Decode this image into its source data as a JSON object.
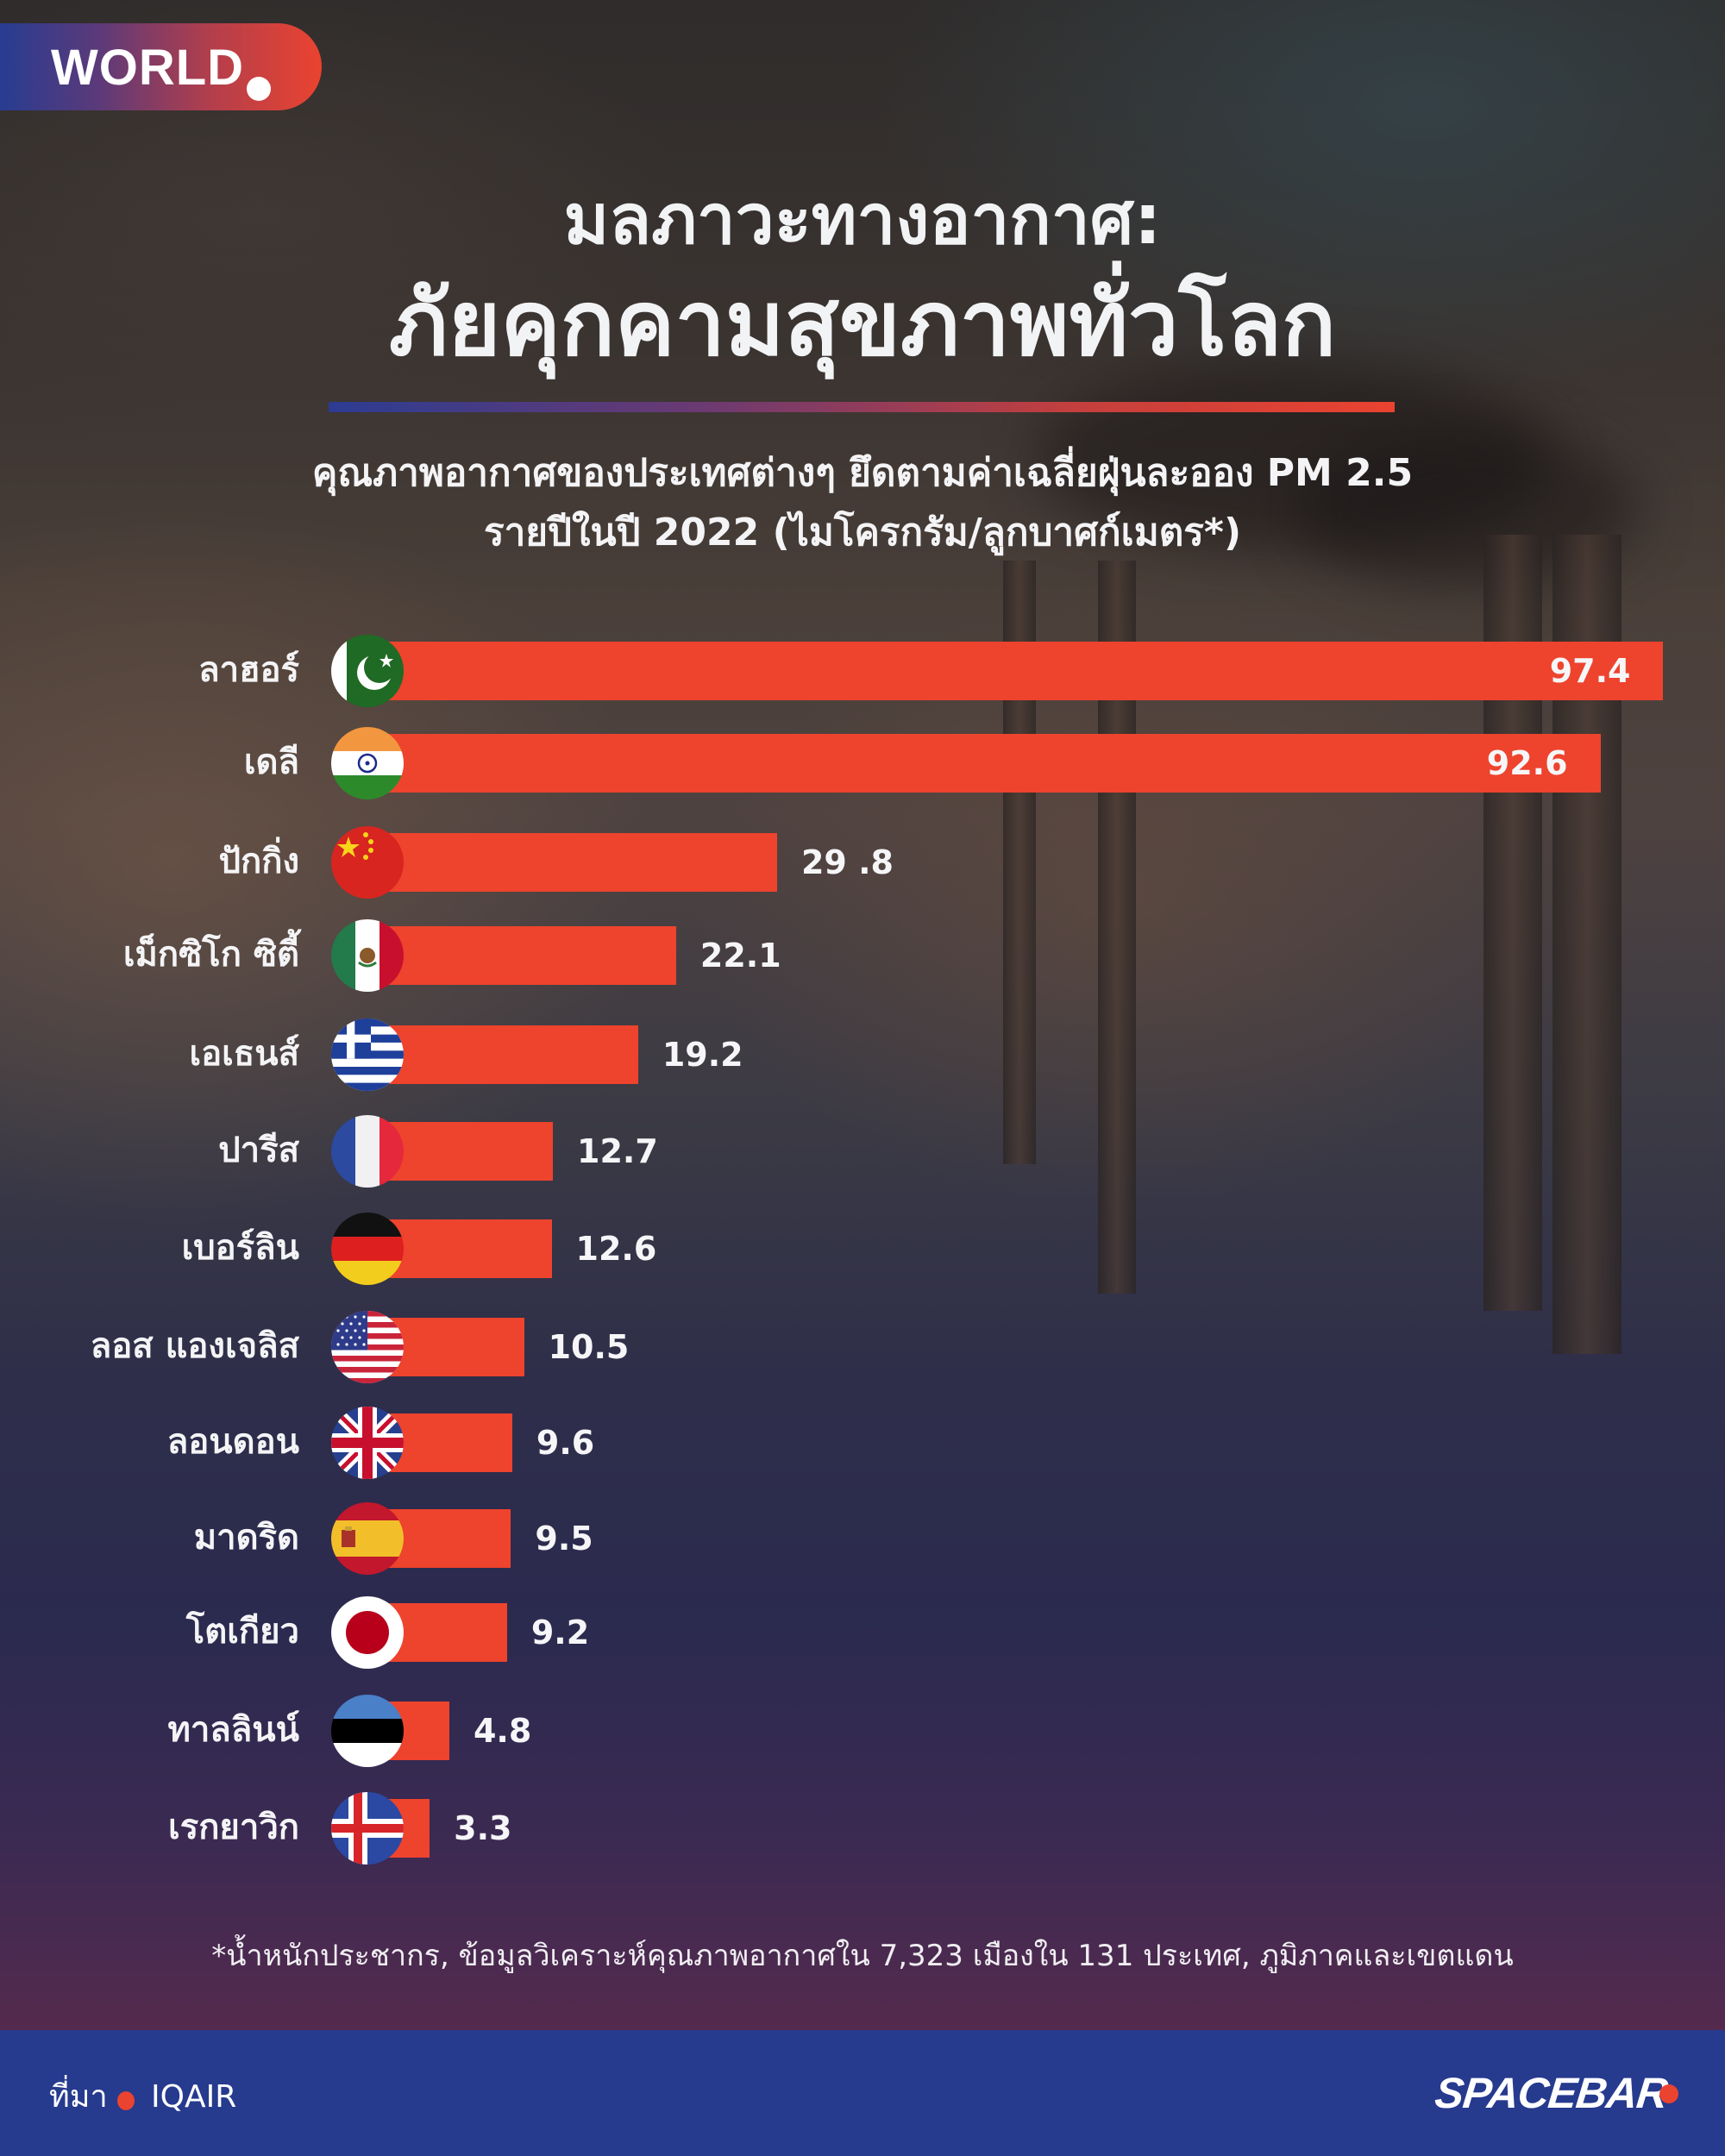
{
  "badge": {
    "label": "WORLD"
  },
  "title": {
    "line1": "มลภาวะทางอากาศ:",
    "line2": "ภัยคุกคามสุขภาพทั่วโลก"
  },
  "subtitle": {
    "line1": "คุณภาพอากาศของประเทศต่างๆ ยึดตามค่าเฉลี่ยฝุ่นละออง PM 2.5",
    "line2": "รายปีในปี 2022 (ไมโครกรัม/ลูกบาศก์เมตร*)"
  },
  "footnote": "*น้ำหนักประชากร, ข้อมูลวิเคราะห์คุณภาพอากาศใน 7,323 เมืองใน 131 ประเทศ, ภูมิภาคและเขตแดน",
  "footer": {
    "source_label": "ที่มา",
    "source_value": "IQAIR",
    "logo": "SPACEBAR"
  },
  "colors": {
    "bar": "#ee432d",
    "accent_red": "#ea4330",
    "accent_blue": "#263a8e",
    "text": "#ffffff"
  },
  "chart_data": {
    "type": "bar",
    "orientation": "horizontal",
    "title": "มลภาวะทางอากาศ: ภัยคุกคามสุขภาพทั่วโลก",
    "subtitle": "คุณภาพอากาศของประเทศต่างๆ ยึดตามค่าเฉลี่ยฝุ่นละออง PM 2.5 รายปีในปี 2022 (ไมโครกรัม/ลูกบาศก์เมตร*)",
    "xlabel": "",
    "ylabel": "",
    "grid": false,
    "legend": null,
    "categories": [
      "ลาฮอร์",
      "เดลี",
      "ปักกิ่ง",
      "เม็กซิโก ซิตี้",
      "เอเธนส์",
      "ปารีส",
      "เบอร์ลิน",
      "ลอส แองเจลิส",
      "ลอนดอน",
      "มาดริด",
      "โตเกียว",
      "ทาลลินน์",
      "เรกยาวิก"
    ],
    "values": [
      97.4,
      92.6,
      29.8,
      22.1,
      19.2,
      12.7,
      12.6,
      10.5,
      9.6,
      9.5,
      9.2,
      4.8,
      3.3
    ],
    "value_labels": [
      "97.4",
      "92.6",
      "29 .8",
      "22.1",
      "19.2",
      "12.7",
      "12.6",
      "10.5",
      "9.6",
      "9.5",
      "9.2",
      "4.8",
      "3.3"
    ],
    "flags": [
      "flag-pakistan-icon",
      "flag-india-icon",
      "flag-china-icon",
      "flag-mexico-icon",
      "flag-greece-icon",
      "flag-france-icon",
      "flag-germany-icon",
      "flag-usa-icon",
      "flag-uk-icon",
      "flag-spain-icon",
      "flag-japan-icon",
      "flag-estonia-icon",
      "flag-iceland-icon"
    ]
  }
}
